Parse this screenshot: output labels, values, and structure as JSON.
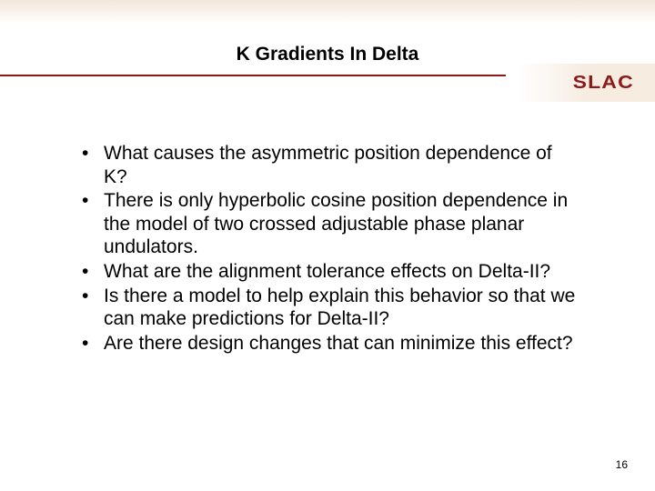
{
  "colors": {
    "rule": "#8B1A1A",
    "logo": "#8B1A1A",
    "background": "#ffffff",
    "top_gradient_start": "#f2e6d9",
    "logo_bg": "#f6ece0"
  },
  "typography": {
    "title_fontsize": 21,
    "body_fontsize": 21,
    "pagenum_fontsize": 12,
    "font_family": "Arial"
  },
  "title": "K Gradients In Delta",
  "logo_text": "SLAC",
  "bullets": [
    "What causes the asymmetric position dependence of K?",
    "There is only hyperbolic cosine position dependence in the model of two crossed adjustable phase planar undulators.",
    "What are the alignment tolerance effects on Delta-II?",
    "Is there a model to help explain this behavior so that we can make predictions for Delta-II?",
    "Are there design changes that can minimize this effect?"
  ],
  "page_number": "16"
}
